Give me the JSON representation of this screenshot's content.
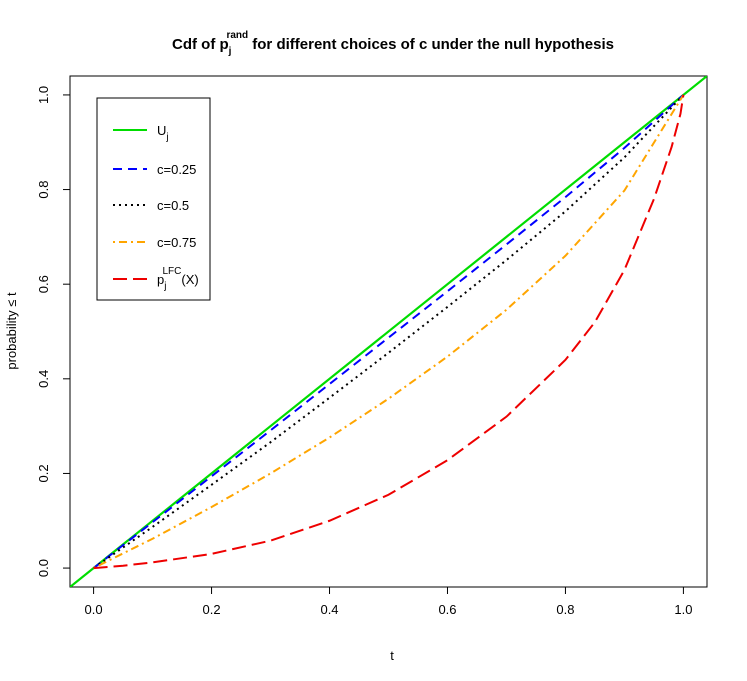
{
  "chart_data": {
    "type": "line",
    "title": {
      "prefix": "Cdf of p",
      "sub": "j",
      "sup": "rand",
      "suffix": " for different choices of c under the null hypothesis"
    },
    "xlabel": "t",
    "ylabel": "probability ≤ t",
    "xlim": [
      -0.04,
      1.04
    ],
    "ylim": [
      -0.04,
      1.04
    ],
    "xticks": [
      0.0,
      0.2,
      0.4,
      0.6,
      0.8,
      1.0
    ],
    "xtick_labels": [
      "0.0",
      "0.2",
      "0.4",
      "0.6",
      "0.8",
      "1.0"
    ],
    "yticks": [
      0.0,
      0.2,
      0.4,
      0.6,
      0.8,
      1.0
    ],
    "ytick_labels": [
      "0.0",
      "0.2",
      "0.4",
      "0.6",
      "0.8",
      "1.0"
    ],
    "grid": false,
    "legend_position": "top-left",
    "series": [
      {
        "name": "U",
        "name_sub": "j",
        "color": "#00dd00",
        "style": "solid",
        "x": [
          -0.04,
          1.04
        ],
        "y": [
          -0.04,
          1.04
        ]
      },
      {
        "name": "c=0.25",
        "color": "#0000ff",
        "style": "dashed",
        "x": [
          0.0,
          0.1,
          0.2,
          0.3,
          0.4,
          0.5,
          0.6,
          0.7,
          0.8,
          0.9,
          1.0
        ],
        "y": [
          0.0,
          0.097,
          0.194,
          0.291,
          0.389,
          0.487,
          0.585,
          0.684,
          0.784,
          0.888,
          1.0
        ]
      },
      {
        "name": "c=0.5",
        "color": "#000000",
        "style": "dotted",
        "x": [
          0.0,
          0.1,
          0.2,
          0.3,
          0.4,
          0.5,
          0.6,
          0.7,
          0.8,
          0.9,
          1.0
        ],
        "y": [
          0.0,
          0.087,
          0.176,
          0.266,
          0.36,
          0.455,
          0.552,
          0.651,
          0.754,
          0.868,
          1.0
        ]
      },
      {
        "name": "c=0.75",
        "color": "#ffa500",
        "style": "dotdash",
        "x": [
          0.0,
          0.1,
          0.2,
          0.3,
          0.4,
          0.5,
          0.6,
          0.7,
          0.8,
          0.9,
          1.0
        ],
        "y": [
          0.0,
          0.062,
          0.129,
          0.2,
          0.276,
          0.358,
          0.447,
          0.546,
          0.66,
          0.798,
          1.0
        ]
      },
      {
        "name": "p",
        "name_sub": "j",
        "name_sup": "LFC",
        "name_suffix": "(X)",
        "color": "#ee0000",
        "style": "longdash",
        "x": [
          0.0,
          0.05,
          0.1,
          0.2,
          0.3,
          0.4,
          0.5,
          0.6,
          0.7,
          0.8,
          0.85,
          0.9,
          0.95,
          0.98,
          0.995,
          1.0
        ],
        "y": [
          0.0,
          0.005,
          0.012,
          0.03,
          0.058,
          0.1,
          0.155,
          0.228,
          0.32,
          0.44,
          0.52,
          0.63,
          0.78,
          0.89,
          0.96,
          1.0
        ]
      }
    ]
  }
}
